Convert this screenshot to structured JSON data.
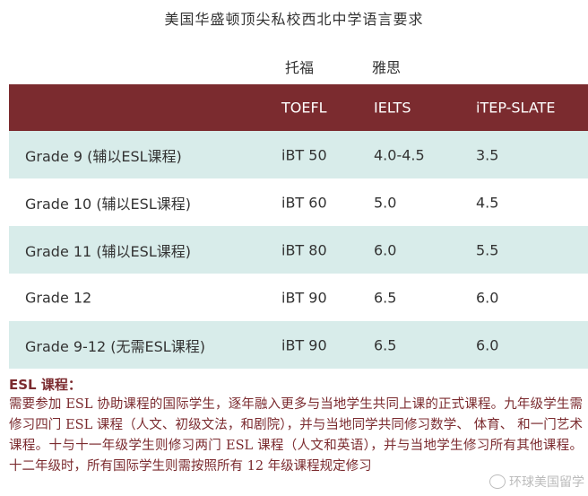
{
  "title": "美国华盛顿顶尖私校西北中学语言要求",
  "cn_headers": {
    "toefl": "托福",
    "ielts": "雅思"
  },
  "table": {
    "headers": [
      "",
      "TOEFL",
      "IELTS",
      "iTEP-SLATE"
    ],
    "rows": [
      [
        "Grade 9 (辅以ESL课程)",
        "iBT 50",
        "4.0-4.5",
        "3.5"
      ],
      [
        "Grade 10 (辅以ESL课程)",
        "iBT 60",
        "5.0",
        "4.5"
      ],
      [
        "Grade 11 (辅以ESL课程)",
        "iBT 80",
        "6.0",
        "5.5"
      ],
      [
        "Grade 12",
        "iBT 90",
        "6.5",
        "6.0"
      ],
      [
        "Grade 9-12 (无需ESL课程)",
        "iBT 90",
        "6.5",
        "6.0"
      ]
    ]
  },
  "esl": {
    "title": "ESL 课程：",
    "body": "需要参加 ESL 协助课程的国际学生，逐年融入更多与当地学生共同上课的正式课程。九年级学生需修习四门 ESL 课程（人文、初级文法，和剧院），并与当地同学共同修习数学、 体育、 和一门艺术课程。十与十一年级学生则修习两门 ESL 课程（人文和英语），并与当地学生修习所有其他课程。十二年级时，所有国际学生则需按照所有 12 年级课程规定修习"
  },
  "watermark": "环球美国留学",
  "colors": {
    "header_bg": "#7b2b2f",
    "row_shade": "#d8ecea",
    "esl_text": "#7b2b2f"
  }
}
